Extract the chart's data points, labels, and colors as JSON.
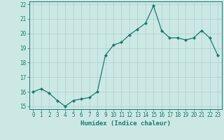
{
  "x": [
    0,
    1,
    2,
    3,
    4,
    5,
    6,
    7,
    8,
    9,
    10,
    11,
    12,
    13,
    14,
    15,
    16,
    17,
    18,
    19,
    20,
    21,
    22,
    23
  ],
  "y": [
    16.0,
    16.2,
    15.9,
    15.4,
    15.0,
    15.4,
    15.5,
    15.6,
    16.0,
    18.5,
    19.2,
    19.4,
    19.9,
    20.3,
    20.7,
    21.9,
    20.2,
    19.7,
    19.7,
    19.55,
    19.7,
    20.2,
    19.7,
    18.5
  ],
  "xlabel": "Humidex (Indice chaleur)",
  "ylim": [
    14.8,
    22.2
  ],
  "xlim": [
    -0.5,
    23.5
  ],
  "yticks": [
    15,
    16,
    17,
    18,
    19,
    20,
    21,
    22
  ],
  "xticks": [
    0,
    1,
    2,
    3,
    4,
    5,
    6,
    7,
    8,
    9,
    10,
    11,
    12,
    13,
    14,
    15,
    16,
    17,
    18,
    19,
    20,
    21,
    22,
    23
  ],
  "line_color": "#1a7a6e",
  "marker_color": "#1a7a6e",
  "bg_color": "#cce8e5",
  "grid_color_major": "#aacfcc",
  "grid_color_minor": "#c2e0dd",
  "label_color": "#1a7a6e",
  "tick_color": "#1a7a6e",
  "spine_color": "#1a7a6e",
  "xlabel_fontsize": 6.5,
  "tick_fontsize": 5.5
}
